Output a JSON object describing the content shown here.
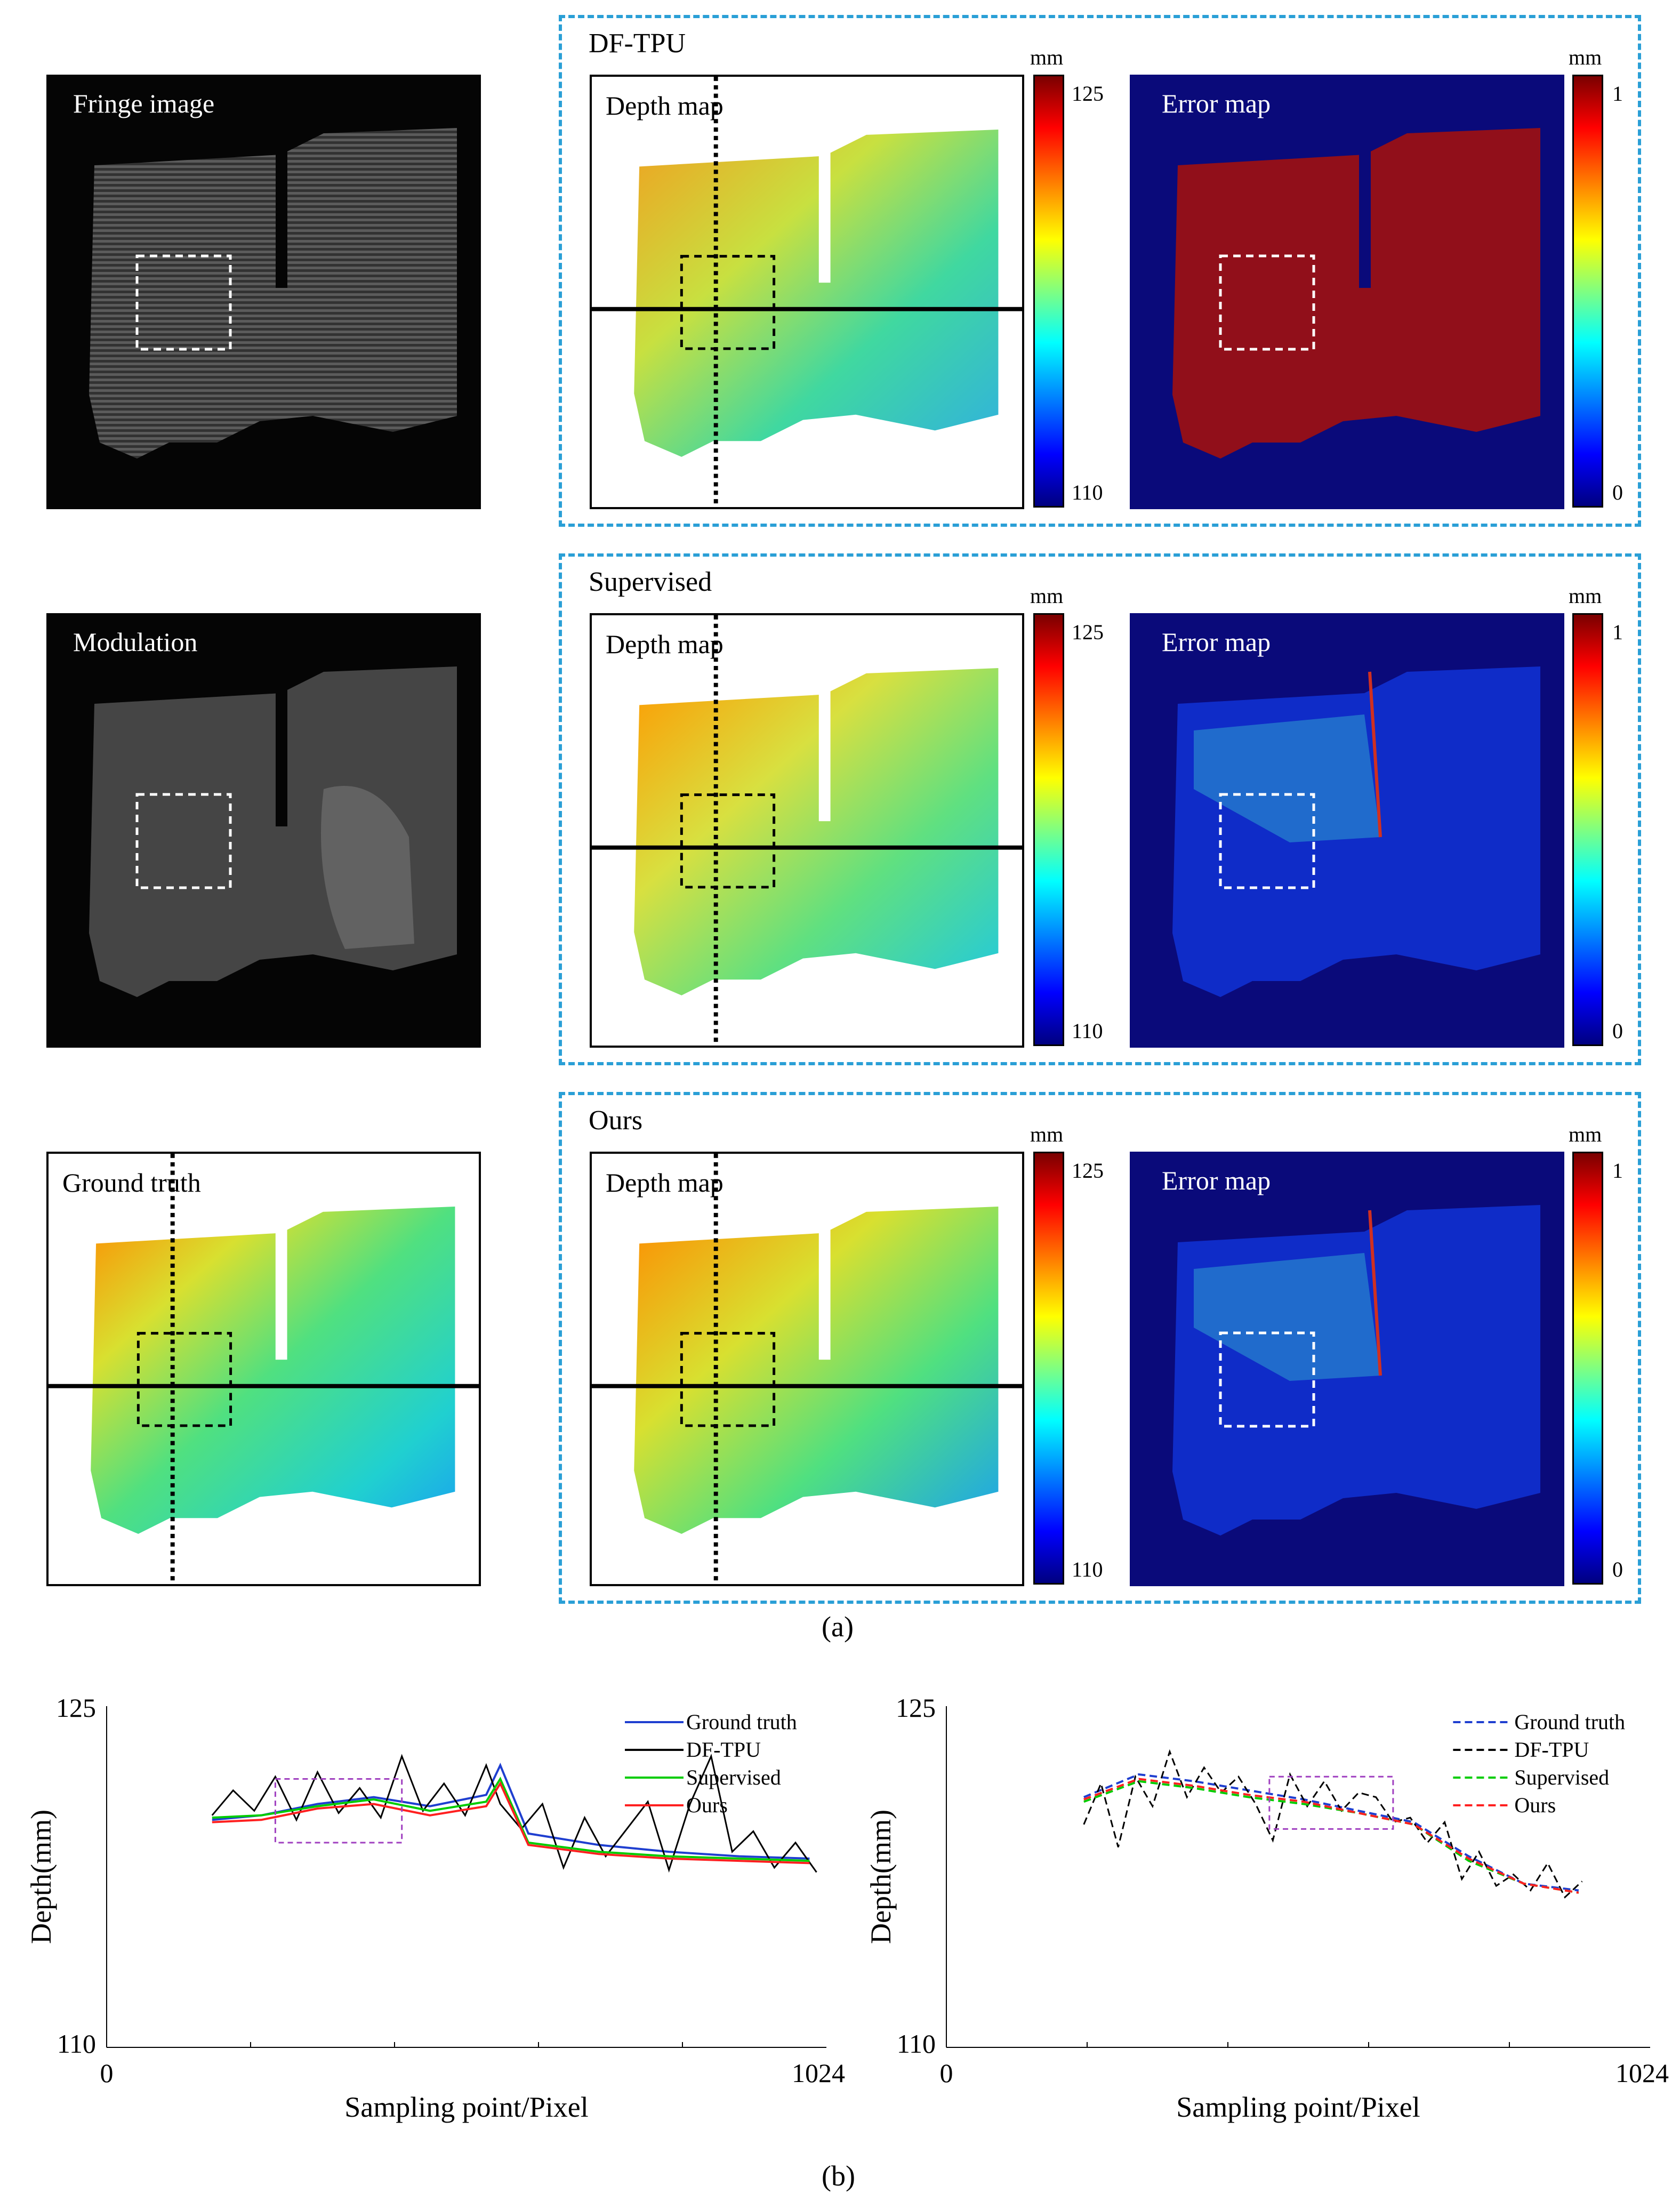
{
  "figure": {
    "panels": {
      "fringe_label": "Fringe image",
      "modulation_label": "Modulation",
      "ground_truth_label": "Ground truth",
      "depth_label": "Depth map",
      "error_label": "Error map"
    },
    "groups": [
      {
        "title": "DF-TPU"
      },
      {
        "title": "Supervised"
      },
      {
        "title": "Ours"
      }
    ],
    "depth_colorbar": {
      "unit": "mm",
      "max": "125",
      "min": "110"
    },
    "error_colorbar": {
      "unit": "mm",
      "max": "1",
      "min": "0"
    },
    "caption_a": "(a)",
    "caption_b": "(b)",
    "colors": {
      "group_border": "#2a9fd6",
      "zoom_box": "#a040c0",
      "gt": "#1f3fd0",
      "dftpu": "#000000",
      "supervised": "#00cc00",
      "ours": "#ff2020"
    }
  },
  "chart_data": [
    {
      "type": "line",
      "ylabel": "Depth(mm)",
      "xlabel": "Sampling point/Pixel",
      "xlim": [
        0,
        1024
      ],
      "ylim": [
        110,
        125
      ],
      "xticks": [
        "0",
        "1024"
      ],
      "yticks": [
        "125",
        "110"
      ],
      "legend": "top-right",
      "line_style": "solid",
      "series": [
        {
          "name": "Ground truth",
          "x": [
            150,
            220,
            300,
            380,
            460,
            540,
            560,
            600,
            700,
            800,
            900,
            1000
          ],
          "y": [
            120.0,
            120.2,
            120.7,
            121.0,
            120.6,
            121.1,
            122.4,
            119.4,
            118.9,
            118.6,
            118.4,
            118.3
          ]
        },
        {
          "name": "DF-TPU",
          "x": [
            150,
            180,
            210,
            240,
            270,
            300,
            330,
            360,
            390,
            420,
            450,
            480,
            510,
            540,
            560,
            590,
            620,
            650,
            680,
            710,
            740,
            770,
            800,
            830,
            860,
            890,
            920,
            950,
            980,
            1010
          ],
          "y": [
            120.2,
            121.3,
            120.4,
            121.9,
            120.0,
            122.1,
            120.3,
            121.4,
            120.1,
            122.8,
            120.4,
            121.6,
            120.2,
            122.4,
            120.7,
            119.6,
            120.7,
            117.9,
            120.1,
            118.4,
            119.6,
            120.8,
            117.8,
            120.7,
            122.8,
            118.6,
            119.5,
            117.9,
            119.0,
            117.7
          ]
        },
        {
          "name": "Supervised",
          "x": [
            150,
            220,
            300,
            380,
            460,
            540,
            560,
            600,
            700,
            800,
            900,
            1000
          ],
          "y": [
            120.1,
            120.2,
            120.6,
            120.9,
            120.4,
            120.8,
            121.8,
            119.0,
            118.6,
            118.4,
            118.3,
            118.2
          ]
        },
        {
          "name": "Ours",
          "x": [
            150,
            220,
            300,
            380,
            460,
            540,
            560,
            600,
            700,
            800,
            900,
            1000
          ],
          "y": [
            119.9,
            120.0,
            120.5,
            120.7,
            120.2,
            120.6,
            121.6,
            118.9,
            118.5,
            118.3,
            118.2,
            118.1
          ]
        }
      ]
    },
    {
      "type": "line",
      "ylabel": "Depth(mm)",
      "xlabel": "Sampling point/Pixel",
      "xlim": [
        0,
        1024
      ],
      "ylim": [
        110,
        125
      ],
      "xticks": [
        "0",
        "1024"
      ],
      "yticks": [
        "125",
        "110"
      ],
      "legend": "top-right",
      "line_style": "dashed",
      "series": [
        {
          "name": "Ground truth",
          "x": [
            200,
            280,
            360,
            440,
            520,
            600,
            680,
            760,
            840,
            920
          ],
          "y": [
            121.0,
            122.0,
            121.7,
            121.3,
            120.9,
            120.4,
            119.9,
            118.4,
            117.2,
            116.9
          ]
        },
        {
          "name": "DF-TPU",
          "x": [
            200,
            225,
            250,
            275,
            300,
            325,
            350,
            375,
            400,
            425,
            450,
            475,
            500,
            525,
            550,
            575,
            600,
            625,
            650,
            675,
            700,
            725,
            750,
            775,
            800,
            825,
            850,
            875,
            900,
            925
          ],
          "y": [
            119.8,
            121.6,
            118.8,
            121.9,
            120.6,
            123.0,
            121.0,
            122.3,
            121.2,
            121.9,
            120.7,
            119.1,
            122.0,
            120.6,
            121.7,
            120.4,
            121.2,
            121.0,
            119.9,
            120.1,
            119.0,
            119.9,
            117.4,
            118.6,
            117.1,
            117.6,
            116.9,
            118.1,
            116.6,
            117.3
          ]
        },
        {
          "name": "Supervised",
          "x": [
            200,
            280,
            360,
            440,
            520,
            600,
            680,
            760,
            840,
            920
          ],
          "y": [
            120.8,
            121.7,
            121.4,
            121.0,
            120.7,
            120.3,
            119.8,
            118.2,
            117.2,
            116.8
          ]
        },
        {
          "name": "Ours",
          "x": [
            200,
            280,
            360,
            440,
            520,
            600,
            680,
            760,
            840,
            920
          ],
          "y": [
            120.9,
            121.8,
            121.5,
            121.1,
            120.8,
            120.3,
            119.8,
            118.3,
            117.2,
            116.8
          ]
        }
      ]
    }
  ]
}
